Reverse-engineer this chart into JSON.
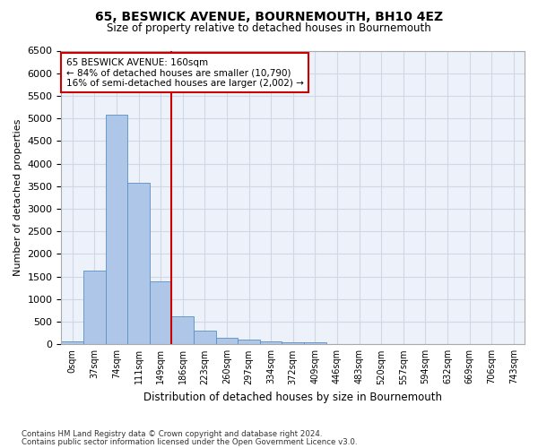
{
  "title": "65, BESWICK AVENUE, BOURNEMOUTH, BH10 4EZ",
  "subtitle": "Size of property relative to detached houses in Bournemouth",
  "xlabel": "Distribution of detached houses by size in Bournemouth",
  "ylabel": "Number of detached properties",
  "footnote1": "Contains HM Land Registry data © Crown copyright and database right 2024.",
  "footnote2": "Contains public sector information licensed under the Open Government Licence v3.0.",
  "bin_labels": [
    "0sqm",
    "37sqm",
    "74sqm",
    "111sqm",
    "149sqm",
    "186sqm",
    "223sqm",
    "260sqm",
    "297sqm",
    "334sqm",
    "372sqm",
    "409sqm",
    "446sqm",
    "483sqm",
    "520sqm",
    "557sqm",
    "594sqm",
    "632sqm",
    "669sqm",
    "706sqm",
    "743sqm"
  ],
  "bar_heights": [
    75,
    1625,
    5075,
    3575,
    1400,
    625,
    300,
    150,
    100,
    75,
    50,
    50,
    0,
    0,
    0,
    0,
    0,
    0,
    0,
    0,
    0
  ],
  "bar_color": "#aec6e8",
  "bar_edge_color": "#5a8fc2",
  "grid_color": "#d0d8e8",
  "vline_x": 4.5,
  "vline_color": "#cc0000",
  "annotation_line1": "65 BESWICK AVENUE: 160sqm",
  "annotation_line2": "← 84% of detached houses are smaller (10,790)",
  "annotation_line3": "16% of semi-detached houses are larger (2,002) →",
  "annotation_box_color": "#cc0000",
  "ylim": [
    0,
    6500
  ],
  "yticks": [
    0,
    500,
    1000,
    1500,
    2000,
    2500,
    3000,
    3500,
    4000,
    4500,
    5000,
    5500,
    6000,
    6500
  ],
  "background_color": "#edf1f9"
}
